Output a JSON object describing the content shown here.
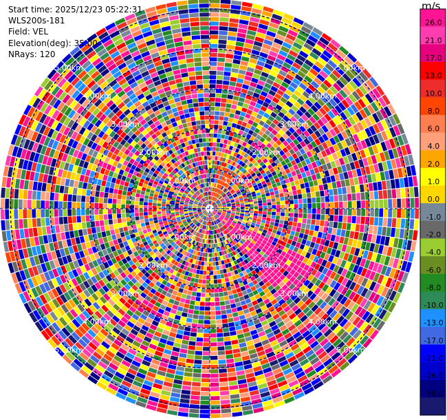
{
  "info": {
    "start_time": "Start time: 2025/12/23 05:22:31",
    "instrument": "WLS200s-181",
    "field": "Field: VEL",
    "elevation": "Elevation(deg): 35.00",
    "nrays": "NRays: 120"
  },
  "chart_data": {
    "type": "ppi",
    "field": "VEL",
    "elevation_deg": 35.0,
    "n_rays": 120,
    "max_range_km": 5.0,
    "range_ring_labels": [
      "1.00km",
      "2.00km",
      "3.00km",
      "4.00km",
      "5.00km"
    ],
    "range_ring_values_km": [
      1,
      2,
      3,
      4,
      5
    ],
    "colorbar": {
      "unit": "m/s",
      "ticks": [
        "26.0",
        "21.0",
        "17.0",
        "13.0",
        "10.0",
        "8.0",
        "6.0",
        "4.0",
        "2.0",
        "1.0",
        "0.0",
        "-1.0",
        "-2.0",
        "-4.0",
        "-6.0",
        "-8.0",
        "-10.0",
        "-13.0",
        "-17.0",
        "-21.0",
        "-26.0",
        "-30.0"
      ],
      "colors": [
        "#ff1493",
        "#ff3db0",
        "#e6007e",
        "#ff0000",
        "#ee2c2c",
        "#ff4500",
        "#ff7f50",
        "#ffa07a",
        "#ffa500",
        "#ffff00",
        "#ffd700",
        "#778899",
        "#696969",
        "#9acd32",
        "#6b8e23",
        "#228b22",
        "#2e8b57",
        "#1e90ff",
        "#4169e1",
        "#0000ff",
        "#0000cd",
        "#000080",
        "#191970"
      ]
    }
  }
}
